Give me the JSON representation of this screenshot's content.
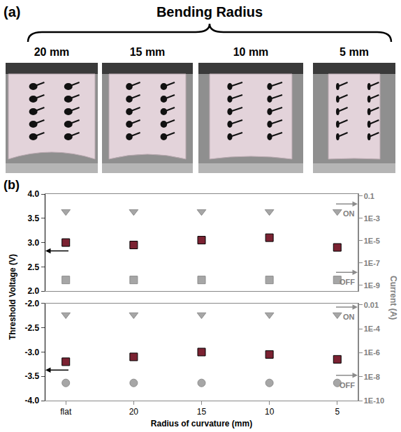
{
  "panel_a": {
    "label": "(a)",
    "title": "Bending Radius",
    "photo_labels": [
      "20 mm",
      "15 mm",
      "10 mm",
      "5 mm"
    ]
  },
  "figure": {
    "label": "(b)",
    "x_label": "Radius of curvature (mm)",
    "y_label": "Threshold Voltage (V)",
    "y2_label": "Current (A)"
  },
  "chart_data": [
    {
      "type": "scatter",
      "categories": [
        "flat",
        "20",
        "15",
        "10",
        "5"
      ],
      "grid": false,
      "tick_labels": "y",
      "log": "y2",
      "ylim": [
        2,
        4
      ],
      "yticks": [
        {
          "value": 2,
          "label": "2.0"
        },
        2.5,
        {
          "value": 3,
          "label": "3.0"
        },
        3.5,
        {
          "value": 4,
          "label": "4.0"
        }
      ],
      "y2lim": [
        3e-10,
        0.15
      ],
      "y2ticks": [
        {
          "value": 1e-09,
          "label": "1E-9"
        },
        {
          "value": 1e-07,
          "label": "1E-7"
        },
        {
          "value": 1e-05,
          "label": "1E-5"
        },
        {
          "value": 0.001,
          "label": "1E-3"
        },
        0.1
      ],
      "series": [
        {
          "marker": "square",
          "color": "#7b2232",
          "values": [
            3.0,
            2.95,
            3.05,
            3.1,
            2.9
          ]
        },
        {
          "name": "ON",
          "axis": "y2",
          "marker": "triangle-down",
          "color": "#a6a6a6",
          "values": [
            0.004,
            0.004,
            0.004,
            0.004,
            0.004
          ]
        },
        {
          "name": "OFF",
          "axis": "y2",
          "marker": "square",
          "color": "#a6a6a6",
          "values": [
            3e-09,
            3e-09,
            3e-09,
            3e-09,
            3e-09
          ]
        }
      ]
    },
    {
      "type": "scatter",
      "categories": [
        "flat",
        "20",
        "15",
        "10",
        "5"
      ],
      "grid": false,
      "log": "y2",
      "ylim": [
        -4,
        -2
      ],
      "yticks": [
        {
          "value": -4,
          "label": "-4.0"
        },
        -3.5,
        {
          "value": -3,
          "label": "-3.0"
        },
        -2.5,
        {
          "value": -2,
          "label": "-2.0"
        }
      ],
      "y2lim": [
        1e-10,
        0.013
      ],
      "y2ticks": [
        {
          "value": 1e-10,
          "label": "1E-10"
        },
        {
          "value": 1e-08,
          "label": "1E-8"
        },
        {
          "value": 1e-06,
          "label": "1E-6"
        },
        {
          "value": 0.0001,
          "label": "1E-4"
        },
        0.01
      ],
      "series": [
        {
          "marker": "square",
          "color": "#7b2232",
          "values": [
            -3.2,
            -3.1,
            -3.0,
            -3.05,
            -3.15
          ]
        },
        {
          "name": "ON",
          "axis": "y2",
          "marker": "triangle-down",
          "color": "#a6a6a6",
          "values": [
            0.0015,
            0.0015,
            0.0015,
            0.0015,
            0.0015
          ]
        },
        {
          "name": "OFF",
          "axis": "y2",
          "marker": "circle",
          "color": "#a6a6a6",
          "values": [
            3e-09,
            3e-09,
            3e-09,
            3e-09,
            3e-09
          ]
        }
      ]
    }
  ]
}
